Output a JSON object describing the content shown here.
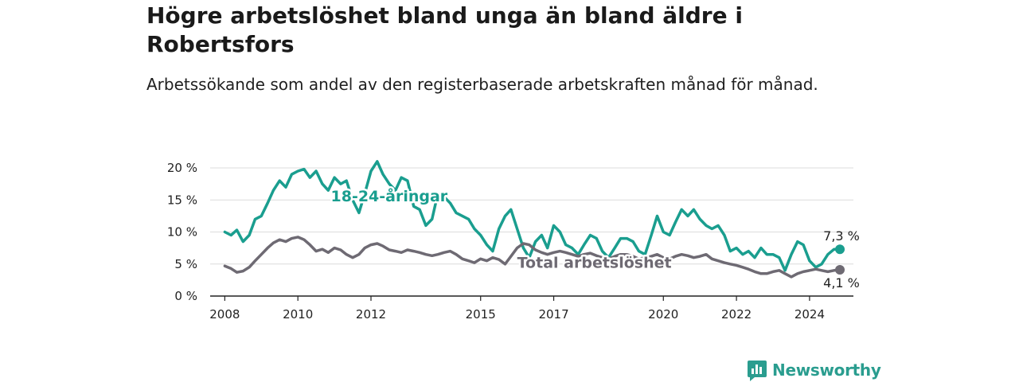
{
  "title": "Högre arbetslöshet bland unga än bland äldre i Robertsfors",
  "subtitle": "Arbetssökande som andel av den registerbaserade arbetskraften månad för månad.",
  "brand": {
    "name": "Newsworthy",
    "icon": "bar-chart-logo-icon",
    "color": "#2a9d8f"
  },
  "chart_data": {
    "type": "line",
    "title": "Högre arbetslöshet bland unga än bland äldre i Robertsfors",
    "subtitle": "Arbetssökande som andel av den registerbaserade arbetskraften månad för månad.",
    "xlabel": "",
    "ylabel": "",
    "x_range": [
      2007.6,
      2025.2
    ],
    "ylim": [
      0,
      20
    ],
    "y_ticks": [
      0,
      5,
      10,
      15,
      20
    ],
    "y_tick_labels": [
      "0 %",
      "5 %",
      "10 %",
      "15 %",
      "20 %"
    ],
    "x_ticks": [
      2008,
      2010,
      2012,
      2015,
      2017,
      2020,
      2022,
      2024
    ],
    "x_tick_labels": [
      "2008",
      "2010",
      "2012",
      "2015",
      "2017",
      "2020",
      "2022",
      "2024"
    ],
    "grid": "horizontal",
    "legend": "none",
    "series": [
      {
        "name": "18-24-åringar",
        "color": "#1a9e8f",
        "end_label": "7,3 %",
        "x": [
          2008.0,
          2008.17,
          2008.33,
          2008.5,
          2008.67,
          2008.83,
          2009.0,
          2009.17,
          2009.33,
          2009.5,
          2009.67,
          2009.83,
          2010.0,
          2010.17,
          2010.33,
          2010.5,
          2010.67,
          2010.83,
          2011.0,
          2011.17,
          2011.33,
          2011.5,
          2011.67,
          2011.83,
          2012.0,
          2012.17,
          2012.33,
          2012.5,
          2012.67,
          2012.83,
          2013.0,
          2013.17,
          2013.33,
          2013.5,
          2013.67,
          2013.83,
          2014.0,
          2014.17,
          2014.33,
          2014.5,
          2014.67,
          2014.83,
          2015.0,
          2015.17,
          2015.33,
          2015.5,
          2015.67,
          2015.83,
          2016.0,
          2016.17,
          2016.33,
          2016.5,
          2016.67,
          2016.83,
          2017.0,
          2017.17,
          2017.33,
          2017.5,
          2017.67,
          2017.83,
          2018.0,
          2018.17,
          2018.33,
          2018.5,
          2018.67,
          2018.83,
          2019.0,
          2019.17,
          2019.33,
          2019.5,
          2019.67,
          2019.83,
          2020.0,
          2020.17,
          2020.33,
          2020.5,
          2020.67,
          2020.83,
          2021.0,
          2021.17,
          2021.33,
          2021.5,
          2021.67,
          2021.83,
          2022.0,
          2022.17,
          2022.33,
          2022.5,
          2022.67,
          2022.83,
          2023.0,
          2023.17,
          2023.33,
          2023.5,
          2023.67,
          2023.83,
          2024.0,
          2024.17,
          2024.33,
          2024.5,
          2024.67,
          2024.83
        ],
        "values": [
          10.0,
          9.5,
          10.3,
          8.5,
          9.5,
          12.0,
          12.5,
          14.5,
          16.5,
          18.0,
          17.0,
          19.0,
          19.5,
          19.8,
          18.5,
          19.5,
          17.5,
          16.5,
          18.5,
          17.5,
          18.0,
          15.0,
          13.0,
          16.0,
          19.5,
          21.0,
          19.0,
          17.5,
          16.5,
          18.5,
          18.0,
          14.0,
          13.5,
          11.0,
          12.0,
          16.0,
          15.5,
          14.5,
          13.0,
          12.5,
          12.0,
          10.5,
          9.5,
          8.0,
          7.0,
          10.5,
          12.5,
          13.5,
          10.5,
          7.5,
          6.0,
          8.5,
          9.5,
          7.5,
          11.0,
          10.0,
          8.0,
          7.5,
          6.5,
          8.0,
          9.5,
          9.0,
          7.0,
          6.0,
          7.5,
          9.0,
          9.0,
          8.5,
          7.0,
          6.5,
          9.5,
          12.5,
          10.0,
          9.5,
          11.5,
          13.5,
          12.5,
          13.5,
          12.0,
          11.0,
          10.5,
          11.0,
          9.5,
          7.0,
          7.5,
          6.5,
          7.0,
          6.0,
          7.5,
          6.5,
          6.5,
          6.0,
          4.0,
          6.5,
          8.5,
          8.0,
          5.5,
          4.5,
          5.0,
          6.5,
          7.3,
          7.3
        ]
      },
      {
        "name": "Total arbetslöshet",
        "color": "#6e6a73",
        "end_label": "4,1 %",
        "x": [
          2008.0,
          2008.17,
          2008.33,
          2008.5,
          2008.67,
          2008.83,
          2009.0,
          2009.17,
          2009.33,
          2009.5,
          2009.67,
          2009.83,
          2010.0,
          2010.17,
          2010.33,
          2010.5,
          2010.67,
          2010.83,
          2011.0,
          2011.17,
          2011.33,
          2011.5,
          2011.67,
          2011.83,
          2012.0,
          2012.17,
          2012.33,
          2012.5,
          2012.67,
          2012.83,
          2013.0,
          2013.17,
          2013.33,
          2013.5,
          2013.67,
          2013.83,
          2014.0,
          2014.17,
          2014.33,
          2014.5,
          2014.67,
          2014.83,
          2015.0,
          2015.17,
          2015.33,
          2015.5,
          2015.67,
          2015.83,
          2016.0,
          2016.17,
          2016.33,
          2016.5,
          2016.67,
          2016.83,
          2017.0,
          2017.17,
          2017.33,
          2017.5,
          2017.67,
          2017.83,
          2018.0,
          2018.17,
          2018.33,
          2018.5,
          2018.67,
          2018.83,
          2019.0,
          2019.17,
          2019.33,
          2019.5,
          2019.67,
          2019.83,
          2020.0,
          2020.17,
          2020.33,
          2020.5,
          2020.67,
          2020.83,
          2021.0,
          2021.17,
          2021.33,
          2021.5,
          2021.67,
          2021.83,
          2022.0,
          2022.17,
          2022.33,
          2022.5,
          2022.67,
          2022.83,
          2023.0,
          2023.17,
          2023.33,
          2023.5,
          2023.67,
          2023.83,
          2024.0,
          2024.17,
          2024.33,
          2024.5,
          2024.67,
          2024.83
        ],
        "values": [
          4.7,
          4.3,
          3.7,
          3.9,
          4.5,
          5.5,
          6.5,
          7.5,
          8.3,
          8.8,
          8.5,
          9.0,
          9.2,
          8.8,
          8.0,
          7.0,
          7.3,
          6.8,
          7.5,
          7.2,
          6.5,
          6.0,
          6.5,
          7.5,
          8.0,
          8.2,
          7.8,
          7.2,
          7.0,
          6.8,
          7.2,
          7.0,
          6.8,
          6.5,
          6.3,
          6.5,
          6.8,
          7.0,
          6.5,
          5.8,
          5.5,
          5.2,
          5.8,
          5.5,
          6.0,
          5.7,
          5.0,
          6.2,
          7.5,
          8.2,
          8.0,
          7.2,
          6.8,
          6.5,
          6.8,
          7.0,
          6.8,
          6.5,
          6.2,
          6.5,
          6.7,
          6.3,
          6.0,
          5.8,
          6.2,
          6.5,
          6.5,
          6.2,
          5.8,
          6.0,
          6.2,
          6.5,
          6.0,
          5.8,
          6.2,
          6.5,
          6.3,
          6.0,
          6.2,
          6.5,
          5.8,
          5.5,
          5.2,
          5.0,
          4.8,
          4.5,
          4.2,
          3.8,
          3.5,
          3.5,
          3.8,
          4.0,
          3.5,
          3.0,
          3.5,
          3.8,
          4.0,
          4.2,
          4.0,
          3.8,
          4.0,
          4.1
        ]
      }
    ]
  }
}
